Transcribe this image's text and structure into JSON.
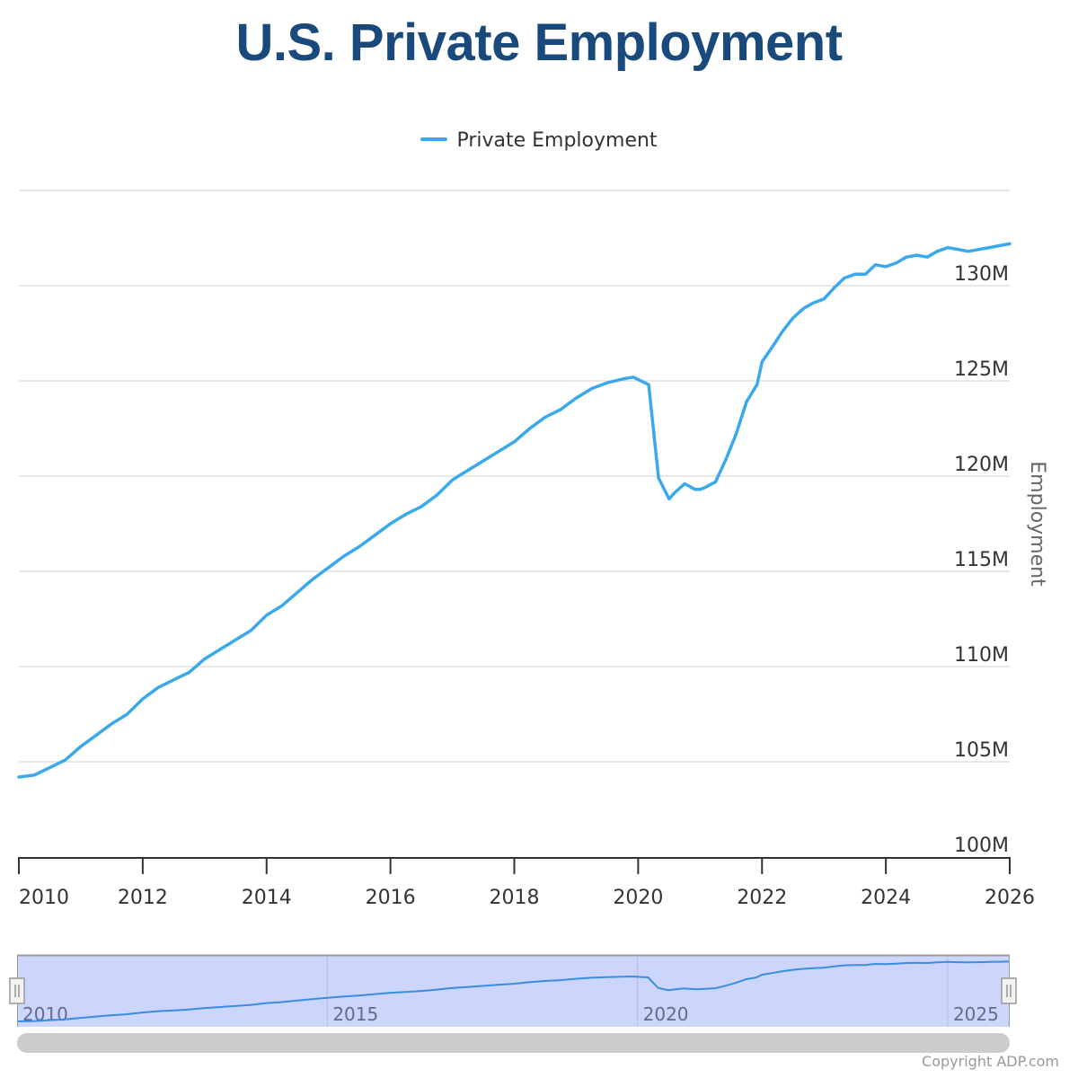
{
  "title": "U.S. Private Employment",
  "copyright": "Copyright ADP.com",
  "colors": {
    "title": "#194a7b",
    "series": "#3aa9ec",
    "navigator_line": "#3a8ee0",
    "navigator_fill": "#ccd5fb",
    "grid": "#e0e0e0",
    "axis": "#333333"
  },
  "chart_data": {
    "type": "line",
    "title": "U.S. Private Employment",
    "xlabel": "",
    "ylabel": "Employment",
    "xlim": [
      2010,
      2026
    ],
    "ylim": [
      100,
      135
    ],
    "y_unit": "millions",
    "grid": true,
    "legend_position": "top-center",
    "x_ticks": [
      2010,
      2012,
      2014,
      2016,
      2018,
      2020,
      2022,
      2024,
      2026
    ],
    "x_tick_labels": [
      "2010",
      "2012",
      "2014",
      "2016",
      "2018",
      "2020",
      "2022",
      "2024",
      "2026"
    ],
    "y_ticks": [
      100,
      105,
      110,
      115,
      120,
      125,
      130
    ],
    "y_tick_labels": [
      "100M",
      "105M",
      "110M",
      "115M",
      "120M",
      "125M",
      "130M"
    ],
    "series": [
      {
        "name": "Private Employment",
        "x": [
          2010.0,
          2010.25,
          2010.5,
          2010.75,
          2011.0,
          2011.25,
          2011.5,
          2011.75,
          2012.0,
          2012.25,
          2012.5,
          2012.75,
          2013.0,
          2013.25,
          2013.5,
          2013.75,
          2014.0,
          2014.25,
          2014.5,
          2014.75,
          2015.0,
          2015.25,
          2015.5,
          2015.75,
          2016.0,
          2016.25,
          2016.5,
          2016.75,
          2017.0,
          2017.25,
          2017.5,
          2017.75,
          2018.0,
          2018.25,
          2018.5,
          2018.75,
          2019.0,
          2019.25,
          2019.5,
          2019.75,
          2019.92,
          2020.17,
          2020.33,
          2020.5,
          2020.58,
          2020.75,
          2020.92,
          2021.0,
          2021.08,
          2021.25,
          2021.42,
          2021.58,
          2021.75,
          2021.92,
          2022.0,
          2022.17,
          2022.33,
          2022.5,
          2022.67,
          2022.83,
          2023.0,
          2023.17,
          2023.33,
          2023.5,
          2023.67,
          2023.83,
          2024.0,
          2024.17,
          2024.33,
          2024.5,
          2024.67,
          2024.83,
          2025.0,
          2025.17,
          2025.33,
          2025.5,
          2025.67,
          2025.83,
          2026.0
        ],
        "y": [
          104.2,
          104.3,
          104.7,
          105.1,
          105.8,
          106.4,
          107.0,
          107.5,
          108.3,
          108.9,
          109.3,
          109.7,
          110.4,
          110.9,
          111.4,
          111.9,
          112.7,
          113.2,
          113.9,
          114.6,
          115.2,
          115.8,
          116.3,
          116.9,
          117.5,
          118.0,
          118.4,
          119.0,
          119.8,
          120.3,
          120.8,
          121.3,
          121.8,
          122.5,
          123.1,
          123.5,
          124.1,
          124.6,
          124.9,
          125.1,
          125.2,
          124.8,
          119.9,
          118.8,
          119.1,
          119.6,
          119.3,
          119.3,
          119.4,
          119.7,
          120.9,
          122.2,
          123.9,
          124.8,
          126.0,
          126.8,
          127.6,
          128.3,
          128.8,
          129.1,
          129.3,
          129.9,
          130.4,
          130.6,
          130.6,
          131.1,
          131.0,
          131.2,
          131.5,
          131.6,
          131.5,
          131.8,
          132.0,
          131.9,
          131.8,
          131.9,
          132.0,
          132.1,
          132.2
        ]
      }
    ],
    "navigator": {
      "x_ticks": [
        2010,
        2015,
        2020,
        2025
      ],
      "x_tick_labels": [
        "2010",
        "2015",
        "2020",
        "2025"
      ],
      "selected_range": [
        2010,
        2026
      ]
    }
  }
}
